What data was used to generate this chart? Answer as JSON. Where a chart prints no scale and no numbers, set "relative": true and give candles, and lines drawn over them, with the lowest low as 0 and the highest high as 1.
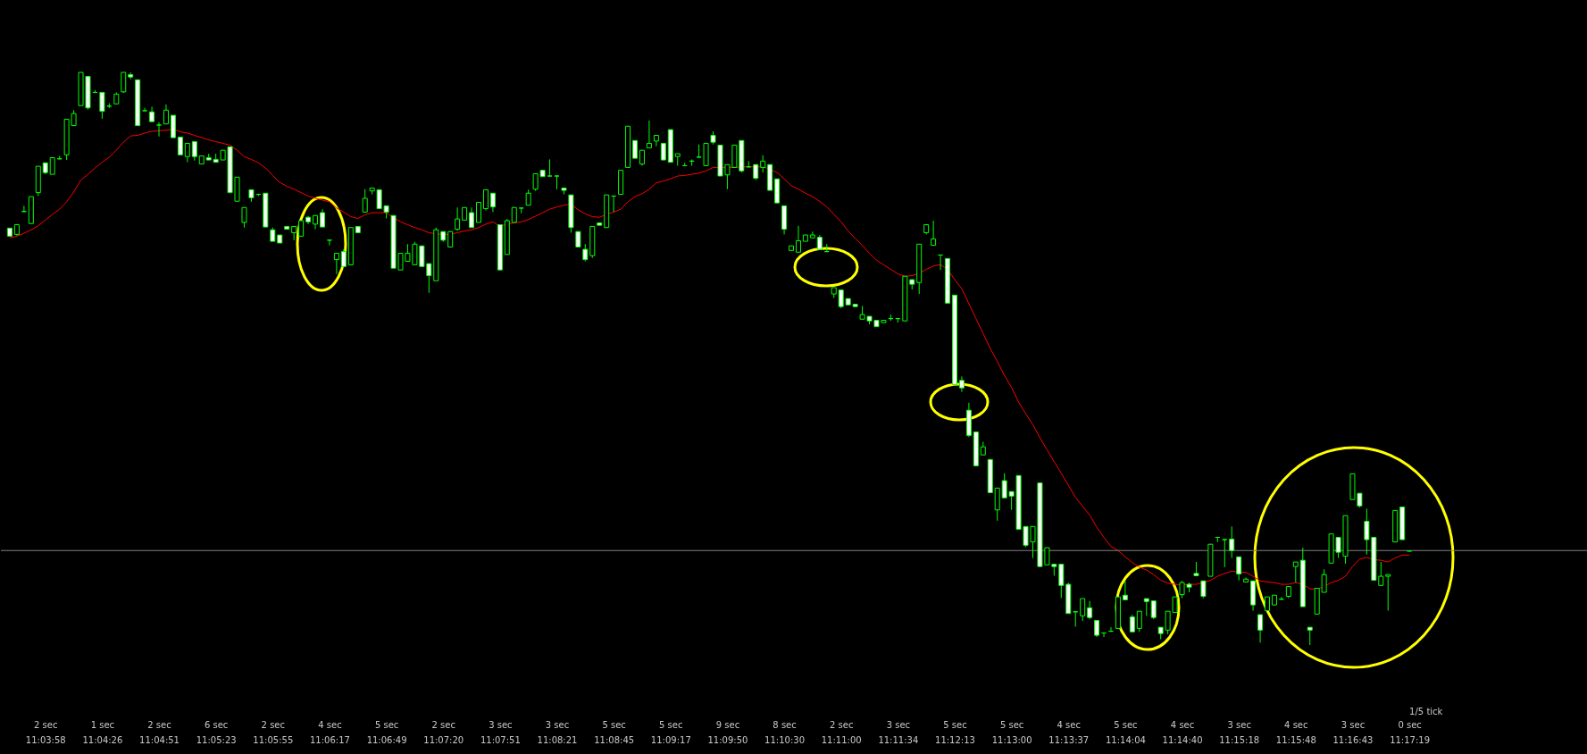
{
  "chart_data": {
    "type": "candlestick",
    "relative": true,
    "color": "#00ff00",
    "categories": [
      null,
      null,
      null,
      null,
      null,
      "2 sec\n11:03:58",
      null,
      null,
      null,
      null,
      null,
      null,
      null,
      "1 sec\n11:04:26",
      null,
      null,
      null,
      null,
      null,
      null,
      null,
      "2 sec\n11:04:51",
      null,
      null,
      null,
      null,
      null,
      null,
      null,
      "6 sec\n11:05:23",
      null,
      null,
      null,
      null,
      null,
      null,
      null,
      "2 sec\n11:05:55",
      null,
      null,
      null,
      null,
      null,
      null,
      null,
      "4 sec\n11:06:17",
      null,
      null,
      null,
      null,
      null,
      null,
      null,
      "5 sec\n11:06:49",
      null,
      null,
      null,
      null,
      null,
      null,
      null,
      "2 sec\n11:07:20",
      null,
      null,
      null,
      null,
      null,
      null,
      null,
      "3 sec\n11:07:51",
      null,
      null,
      null,
      null,
      null,
      null,
      null,
      "3 sec\n11:08:21",
      null,
      null,
      null,
      null,
      null,
      null,
      null,
      "5 sec\n11:08:45",
      null,
      null,
      null,
      null,
      null,
      null,
      null,
      "5 sec\n11:09:17",
      null,
      null,
      null,
      null,
      null,
      null,
      null,
      "9 sec\n11:09:50",
      null,
      null,
      null,
      null,
      null,
      null,
      null,
      "8 sec\n11:10:30",
      null,
      null,
      null,
      null,
      null,
      null,
      null,
      "2 sec\n11:11:00",
      null,
      null,
      null,
      null,
      null,
      null,
      null,
      "3 sec\n11:11:34",
      null,
      null,
      null,
      null,
      null,
      null,
      null,
      "5 sec\n11:12:13",
      null,
      null,
      null,
      null,
      null,
      null,
      null,
      "5 sec\n11:13:00",
      null,
      null,
      null,
      null,
      null,
      null,
      null,
      "4 sec\n11:13:37",
      null,
      null,
      null,
      null,
      null,
      null,
      null,
      "5 sec\n11:14:04",
      null,
      null,
      null,
      null,
      null,
      null,
      null,
      "4 sec\n11:14:40",
      null,
      null,
      null,
      null,
      null,
      null,
      null,
      "3 sec\n11:15:18",
      null,
      null,
      null,
      null,
      null,
      null,
      null,
      "4 sec\n11:15:48",
      null,
      null,
      null,
      null,
      null,
      null,
      null,
      "3 sec\n11:16:43",
      null,
      null,
      null,
      null,
      null,
      null,
      null,
      "0 sec\n11:17:19"
    ],
    "ohlc": [
      [
        0.728,
        0.728,
        0.713,
        0.714
      ],
      [
        0.717,
        0.734,
        0.715,
        0.734
      ],
      [
        0.757,
        0.767,
        0.756,
        0.757
      ],
      [
        0.736,
        0.783,
        0.736,
        0.783
      ],
      [
        0.79,
        0.836,
        0.784,
        0.836
      ],
      [
        0.842,
        0.842,
        0.822,
        0.825
      ],
      [
        0.822,
        0.851,
        0.822,
        0.851
      ],
      [
        0.849,
        0.854,
        0.848,
        0.849
      ],
      [
        0.856,
        0.918,
        0.847,
        0.918
      ],
      [
        0.907,
        0.934,
        0.907,
        0.928
      ],
      [
        0.942,
        1,
        0.942,
        1
      ],
      [
        0.993,
        0.993,
        0.935,
        0.938
      ],
      [
        0.965,
        0.969,
        0.964,
        0.965
      ],
      [
        0.965,
        0.965,
        0.919,
        0.932
      ],
      [
        0.941,
        0.946,
        0.938,
        0.941
      ],
      [
        0.945,
        0.965,
        0.945,
        0.962
      ],
      [
        0.966,
        1,
        0.964,
        1
      ],
      [
        0.996,
        1,
        0.988,
        0.992
      ],
      [
        0.987,
        0.987,
        0.907,
        0.907
      ],
      [
        0.933,
        0.938,
        0.932,
        0.933
      ],
      [
        0.931,
        0.94,
        0.914,
        0.914
      ],
      [
        0.908,
        0.913,
        0.888,
        0.908
      ],
      [
        0.91,
        0.944,
        0.91,
        0.934
      ],
      [
        0.925,
        0.925,
        0.886,
        0.886
      ],
      [
        0.887,
        0.887,
        0.856,
        0.856
      ],
      [
        0.853,
        0.876,
        0.843,
        0.876
      ],
      [
        0.879,
        0.879,
        0.846,
        0.853
      ],
      [
        0.84,
        0.854,
        0.84,
        0.854
      ],
      [
        0.851,
        0.858,
        0.847,
        0.847
      ],
      [
        0.848,
        0.858,
        0.843,
        0.843
      ],
      [
        0.847,
        0.864,
        0.847,
        0.864
      ],
      [
        0.87,
        0.87,
        0.79,
        0.79
      ],
      [
        0.775,
        0.817,
        0.775,
        0.817
      ],
      [
        0.738,
        0.764,
        0.729,
        0.764
      ],
      [
        0.795,
        0.795,
        0.774,
        0.781
      ],
      [
        0.787,
        0.788,
        0.784,
        0.787
      ],
      [
        0.789,
        0.789,
        0.73,
        0.73
      ],
      [
        0.725,
        0.729,
        0.705,
        0.705
      ],
      [
        0.716,
        0.716,
        0.702,
        0.702
      ],
      [
        0.731,
        0.731,
        0.726,
        0.726
      ],
      [
        0.72,
        0.731,
        0.707,
        0.731
      ],
      [
        0.714,
        0.741,
        0.714,
        0.741
      ],
      [
        0.747,
        0.749,
        0.735,
        0.739
      ],
      [
        0.735,
        0.75,
        0.726,
        0.75
      ],
      [
        0.755,
        0.761,
        0.73,
        0.73
      ],
      [
        0.707,
        0.707,
        0.698,
        0.707
      ],
      [
        0.673,
        0.684,
        0.648,
        0.684
      ],
      [
        0.687,
        0.691,
        0.661,
        0.661
      ],
      [
        0.664,
        0.729,
        0.664,
        0.729
      ],
      [
        0.731,
        0.731,
        0.72,
        0.72
      ],
      [
        0.756,
        0.796,
        0.756,
        0.78
      ],
      [
        0.793,
        0.798,
        0.787,
        0.798
      ],
      [
        0.795,
        0.795,
        0.762,
        0.762
      ],
      [
        0.767,
        0.767,
        0.745,
        0.756
      ],
      [
        0.75,
        0.75,
        0.658,
        0.658
      ],
      [
        0.655,
        0.684,
        0.655,
        0.684
      ],
      [
        0.67,
        0.7,
        0.67,
        0.684
      ],
      [
        0.664,
        0.704,
        0.664,
        0.7
      ],
      [
        0.697,
        0.697,
        0.661,
        0.661
      ],
      [
        0.666,
        0.666,
        0.615,
        0.645
      ],
      [
        0.636,
        0.729,
        0.636,
        0.725
      ],
      [
        0.722,
        0.722,
        0.704,
        0.707
      ],
      [
        0.695,
        0.722,
        0.695,
        0.722
      ],
      [
        0.726,
        0.764,
        0.723,
        0.744
      ],
      [
        0.742,
        0.764,
        0.742,
        0.764
      ],
      [
        0.755,
        0.764,
        0.729,
        0.729
      ],
      [
        0.738,
        0.773,
        0.738,
        0.773
      ],
      [
        0.762,
        0.795,
        0.759,
        0.795
      ],
      [
        0.789,
        0.789,
        0.756,
        0.765
      ],
      [
        0.734,
        0.734,
        0.655,
        0.655
      ],
      [
        0.682,
        0.744,
        0.682,
        0.741
      ],
      [
        0.738,
        0.764,
        0.738,
        0.764
      ],
      [
        0.763,
        0.764,
        0.754,
        0.763
      ],
      [
        0.768,
        0.795,
        0.768,
        0.789
      ],
      [
        0.796,
        0.823,
        0.793,
        0.823
      ],
      [
        0.829,
        0.829,
        0.818,
        0.818
      ],
      [
        0.819,
        0.848,
        0.818,
        0.819
      ],
      [
        0.819,
        0.82,
        0.796,
        0.819
      ],
      [
        0.798,
        0.798,
        0.787,
        0.794
      ],
      [
        0.786,
        0.786,
        0.72,
        0.729
      ],
      [
        0.722,
        0.722,
        0.695,
        0.695
      ],
      [
        0.691,
        0.7,
        0.67,
        0.673
      ],
      [
        0.68,
        0.731,
        0.676,
        0.731
      ],
      [
        0.737,
        0.737,
        0.733,
        0.733
      ],
      [
        0.729,
        0.786,
        0.729,
        0.786
      ],
      [
        0.784,
        0.785,
        0.756,
        0.784
      ],
      [
        0.787,
        0.829,
        0.787,
        0.829
      ],
      [
        0.834,
        0.906,
        0.834,
        0.906
      ],
      [
        0.881,
        0.881,
        0.85,
        0.85
      ],
      [
        0.84,
        0.864,
        0.837,
        0.864
      ],
      [
        0.868,
        0.916,
        0.868,
        0.876
      ],
      [
        0.88,
        0.89,
        0.871,
        0.89
      ],
      [
        0.876,
        0.876,
        0.847,
        0.847
      ],
      [
        0.9,
        0.9,
        0.843,
        0.843
      ],
      [
        0.853,
        0.858,
        0.837,
        0.858
      ],
      [
        0.837,
        0.842,
        0.836,
        0.837
      ],
      [
        0.845,
        0.848,
        0.837,
        0.845
      ],
      [
        0.852,
        0.874,
        0.851,
        0.852
      ],
      [
        0.837,
        0.876,
        0.837,
        0.876
      ],
      [
        0.89,
        0.897,
        0.874,
        0.878
      ],
      [
        0.873,
        0.873,
        0.819,
        0.819
      ],
      [
        0.821,
        0.839,
        0.796,
        0.839
      ],
      [
        0.834,
        0.873,
        0.834,
        0.873
      ],
      [
        0.881,
        0.881,
        0.825,
        0.828
      ],
      [
        0.835,
        0.845,
        0.834,
        0.835
      ],
      [
        0.839,
        0.839,
        0.812,
        0.815
      ],
      [
        0.834,
        0.855,
        0.825,
        0.845
      ],
      [
        0.839,
        0.839,
        0.794,
        0.794
      ],
      [
        0.814,
        0.814,
        0.772,
        0.772
      ],
      [
        0.767,
        0.767,
        0.717,
        0.726
      ],
      [
        0.689,
        0.697,
        0.689,
        0.697
      ],
      [
        0.686,
        0.732,
        0.686,
        0.706
      ],
      [
        0.705,
        0.716,
        0.705,
        0.716
      ],
      [
        0.711,
        0.722,
        0.711,
        0.716
      ],
      [
        0.712,
        0.716,
        0.69,
        0.691
      ],
      [
        0.687,
        0.7,
        0.686,
        0.687
      ],
      [
        0.613,
        0.624,
        0.606,
        0.624
      ],
      [
        0.62,
        0.62,
        0.588,
        0.591
      ],
      [
        0.605,
        0.605,
        0.594,
        0.594
      ],
      [
        0.595,
        0.595,
        0.591,
        0.591
      ],
      [
        0.569,
        0.592,
        0.569,
        0.577
      ],
      [
        0.574,
        0.574,
        0.56,
        0.566
      ],
      [
        0.567,
        0.567,
        0.556,
        0.556
      ],
      [
        0.563,
        0.567,
        0.563,
        0.567
      ],
      [
        0.57,
        0.577,
        0.566,
        0.57
      ],
      [
        0.57,
        0.571,
        0.563,
        0.57
      ],
      [
        0.566,
        0.644,
        0.566,
        0.644
      ],
      [
        0.638,
        0.638,
        0.621,
        0.63
      ],
      [
        0.633,
        0.7,
        0.613,
        0.7
      ],
      [
        0.72,
        0.734,
        0.717,
        0.734
      ],
      [
        0.698,
        0.741,
        0.698,
        0.709
      ],
      [
        0.681,
        0.682,
        0.655,
        0.681
      ],
      [
        0.675,
        0.675,
        0.597,
        0.597
      ],
      [
        0.611,
        0.611,
        0.455,
        0.455
      ],
      [
        0.462,
        0.469,
        0.442,
        0.449
      ],
      [
        0.41,
        0.423,
        0.363,
        0.366
      ],
      [
        0.372,
        0.372,
        0.313,
        0.313
      ],
      [
        0.332,
        0.355,
        0.332,
        0.346
      ],
      [
        0.324,
        0.324,
        0.266,
        0.266
      ],
      [
        0.236,
        0.274,
        0.217,
        0.274
      ],
      [
        0.287,
        0.3,
        0.257,
        0.257
      ],
      [
        0.268,
        0.268,
        0.236,
        0.26
      ],
      [
        0.296,
        0.296,
        0.202,
        0.202
      ],
      [
        0.207,
        0.207,
        0.171,
        0.174
      ],
      [
        0.18,
        0.207,
        0.152,
        0.207
      ],
      [
        0.283,
        0.283,
        0.137,
        0.137
      ],
      [
        0.14,
        0.17,
        0.14,
        0.17
      ],
      [
        0.141,
        0.141,
        0.121,
        0.137
      ],
      [
        0.141,
        0.141,
        0.082,
        0.104
      ],
      [
        0.106,
        0.109,
        0.055,
        0.055
      ],
      [
        0.058,
        0.059,
        0.032,
        0.058
      ],
      [
        0.051,
        0.081,
        0.042,
        0.081
      ],
      [
        0.065,
        0.077,
        0.045,
        0.048
      ],
      [
        0.043,
        0.043,
        0.014,
        0.017
      ],
      [
        0.021,
        0.022,
        0.014,
        0.021
      ],
      [
        0.024,
        0.031,
        0.023,
        0.024
      ],
      [
        0.029,
        0.084,
        0.029,
        0.084
      ],
      [
        0.087,
        0.112,
        0.079,
        0.079
      ],
      [
        0.049,
        0.053,
        0.023,
        0.023
      ],
      [
        0.029,
        0.059,
        0.023,
        0.059
      ],
      [
        0.081,
        0.081,
        0.051,
        0.076
      ],
      [
        0.077,
        0.077,
        0.045,
        0.048
      ],
      [
        0.031,
        0.031,
        0.01,
        0.02
      ],
      [
        0.026,
        0.059,
        0.019,
        0.059
      ],
      [
        0.057,
        0.084,
        0.057,
        0.084
      ],
      [
        0.088,
        0.112,
        0.082,
        0.109
      ],
      [
        0.106,
        0.109,
        0.092,
        0.101
      ],
      [
        0.125,
        0.145,
        0.121,
        0.121
      ],
      [
        0.112,
        0.112,
        0.082,
        0.085
      ],
      [
        0.12,
        0.176,
        0.12,
        0.176
      ],
      [
        0.188,
        0.189,
        0.18,
        0.188
      ],
      [
        0.184,
        0.185,
        0.136,
        0.184
      ],
      [
        0.185,
        0.207,
        0.152,
        0.165
      ],
      [
        0.154,
        0.154,
        0.113,
        0.124
      ],
      [
        0.11,
        0.118,
        0.11,
        0.115
      ],
      [
        0.112,
        0.112,
        0.06,
        0.07
      ],
      [
        0.053,
        0.053,
        0.004,
        0.026
      ],
      [
        0.06,
        0.084,
        0.06,
        0.084
      ],
      [
        0.07,
        0.087,
        0.07,
        0.087
      ],
      [
        0.08,
        0.084,
        0.079,
        0.08
      ],
      [
        0.085,
        0.102,
        0.082,
        0.102
      ],
      [
        0.137,
        0.145,
        0.109,
        0.145
      ],
      [
        0.148,
        0.17,
        0.067,
        0.067
      ],
      [
        0.031,
        0.031,
        0,
        0.026
      ],
      [
        0.054,
        0.099,
        0.054,
        0.099
      ],
      [
        0.092,
        0.132,
        0.092,
        0.123
      ],
      [
        0.143,
        0.194,
        0.143,
        0.194
      ],
      [
        0.188,
        0.188,
        0.152,
        0.162
      ],
      [
        0.155,
        0.226,
        0.142,
        0.226
      ],
      [
        0.254,
        0.299,
        0.254,
        0.299
      ],
      [
        0.265,
        0.265,
        0.24,
        0.243
      ],
      [
        0.216,
        0.238,
        0.158,
        0.184
      ],
      [
        0.188,
        0.188,
        0.113,
        0.113
      ],
      [
        0.104,
        0.145,
        0.104,
        0.12
      ],
      [
        0.12,
        0.123,
        0.06,
        0.123
      ],
      [
        0.18,
        0.235,
        0.18,
        0.235
      ],
      [
        0.241,
        0.241,
        0.184,
        0.184
      ],
      [
        0.164,
        0.164,
        0.164,
        0.164
      ]
    ],
    "series": [
      {
        "type": "line",
        "color": "#ff0000",
        "values": [
          0.711,
          0.714,
          0.719,
          0.725,
          0.732,
          0.742,
          0.752,
          0.761,
          0.774,
          0.791,
          0.812,
          0.822,
          0.833,
          0.843,
          0.852,
          0.864,
          0.878,
          0.889,
          0.89,
          0.894,
          0.897,
          0.898,
          0.899,
          0.901,
          0.896,
          0.894,
          0.89,
          0.886,
          0.882,
          0.879,
          0.876,
          0.873,
          0.864,
          0.853,
          0.848,
          0.842,
          0.833,
          0.82,
          0.808,
          0.801,
          0.796,
          0.79,
          0.784,
          0.78,
          0.777,
          0.774,
          0.763,
          0.756,
          0.748,
          0.745,
          0.751,
          0.755,
          0.755,
          0.755,
          0.746,
          0.739,
          0.734,
          0.729,
          0.725,
          0.72,
          0.718,
          0.717,
          0.717,
          0.72,
          0.723,
          0.725,
          0.729,
          0.735,
          0.739,
          0.731,
          0.735,
          0.737,
          0.739,
          0.743,
          0.749,
          0.755,
          0.761,
          0.765,
          0.768,
          0.77,
          0.76,
          0.753,
          0.748,
          0.747,
          0.752,
          0.756,
          0.761,
          0.774,
          0.783,
          0.788,
          0.796,
          0.807,
          0.81,
          0.814,
          0.819,
          0.82,
          0.822,
          0.824,
          0.828,
          0.834,
          0.834,
          0.834,
          0.834,
          0.835,
          0.835,
          0.835,
          0.835,
          0.831,
          0.825,
          0.814,
          0.802,
          0.796,
          0.789,
          0.783,
          0.775,
          0.765,
          0.752,
          0.739,
          0.723,
          0.71,
          0.698,
          0.684,
          0.672,
          0.664,
          0.656,
          0.648,
          0.644,
          0.645,
          0.649,
          0.656,
          0.662,
          0.664,
          0.656,
          0.638,
          0.622,
          0.596,
          0.57,
          0.544,
          0.518,
          0.495,
          0.471,
          0.45,
          0.424,
          0.404,
          0.385,
          0.362,
          0.341,
          0.32,
          0.3,
          0.279,
          0.258,
          0.242,
          0.227,
          0.206,
          0.188,
          0.172,
          0.165,
          0.154,
          0.144,
          0.136,
          0.131,
          0.123,
          0.113,
          0.108,
          0.106,
          0.105,
          0.106,
          0.106,
          0.109,
          0.113,
          0.12,
          0.125,
          0.129,
          0.127,
          0.127,
          0.12,
          0.112,
          0.11,
          0.109,
          0.106,
          0.106,
          0.109,
          0.106,
          0.098,
          0.098,
          0.102,
          0.109,
          0.113,
          0.12,
          0.137,
          0.15,
          0.153,
          0.149,
          0.148,
          0.145,
          0.152,
          0.157,
          0.157
        ]
      }
    ],
    "ref_lines": [
      {
        "axis": "y",
        "value": 0.165,
        "color": "#808080"
      }
    ],
    "annotations": [
      "1/5 tick"
    ]
  }
}
